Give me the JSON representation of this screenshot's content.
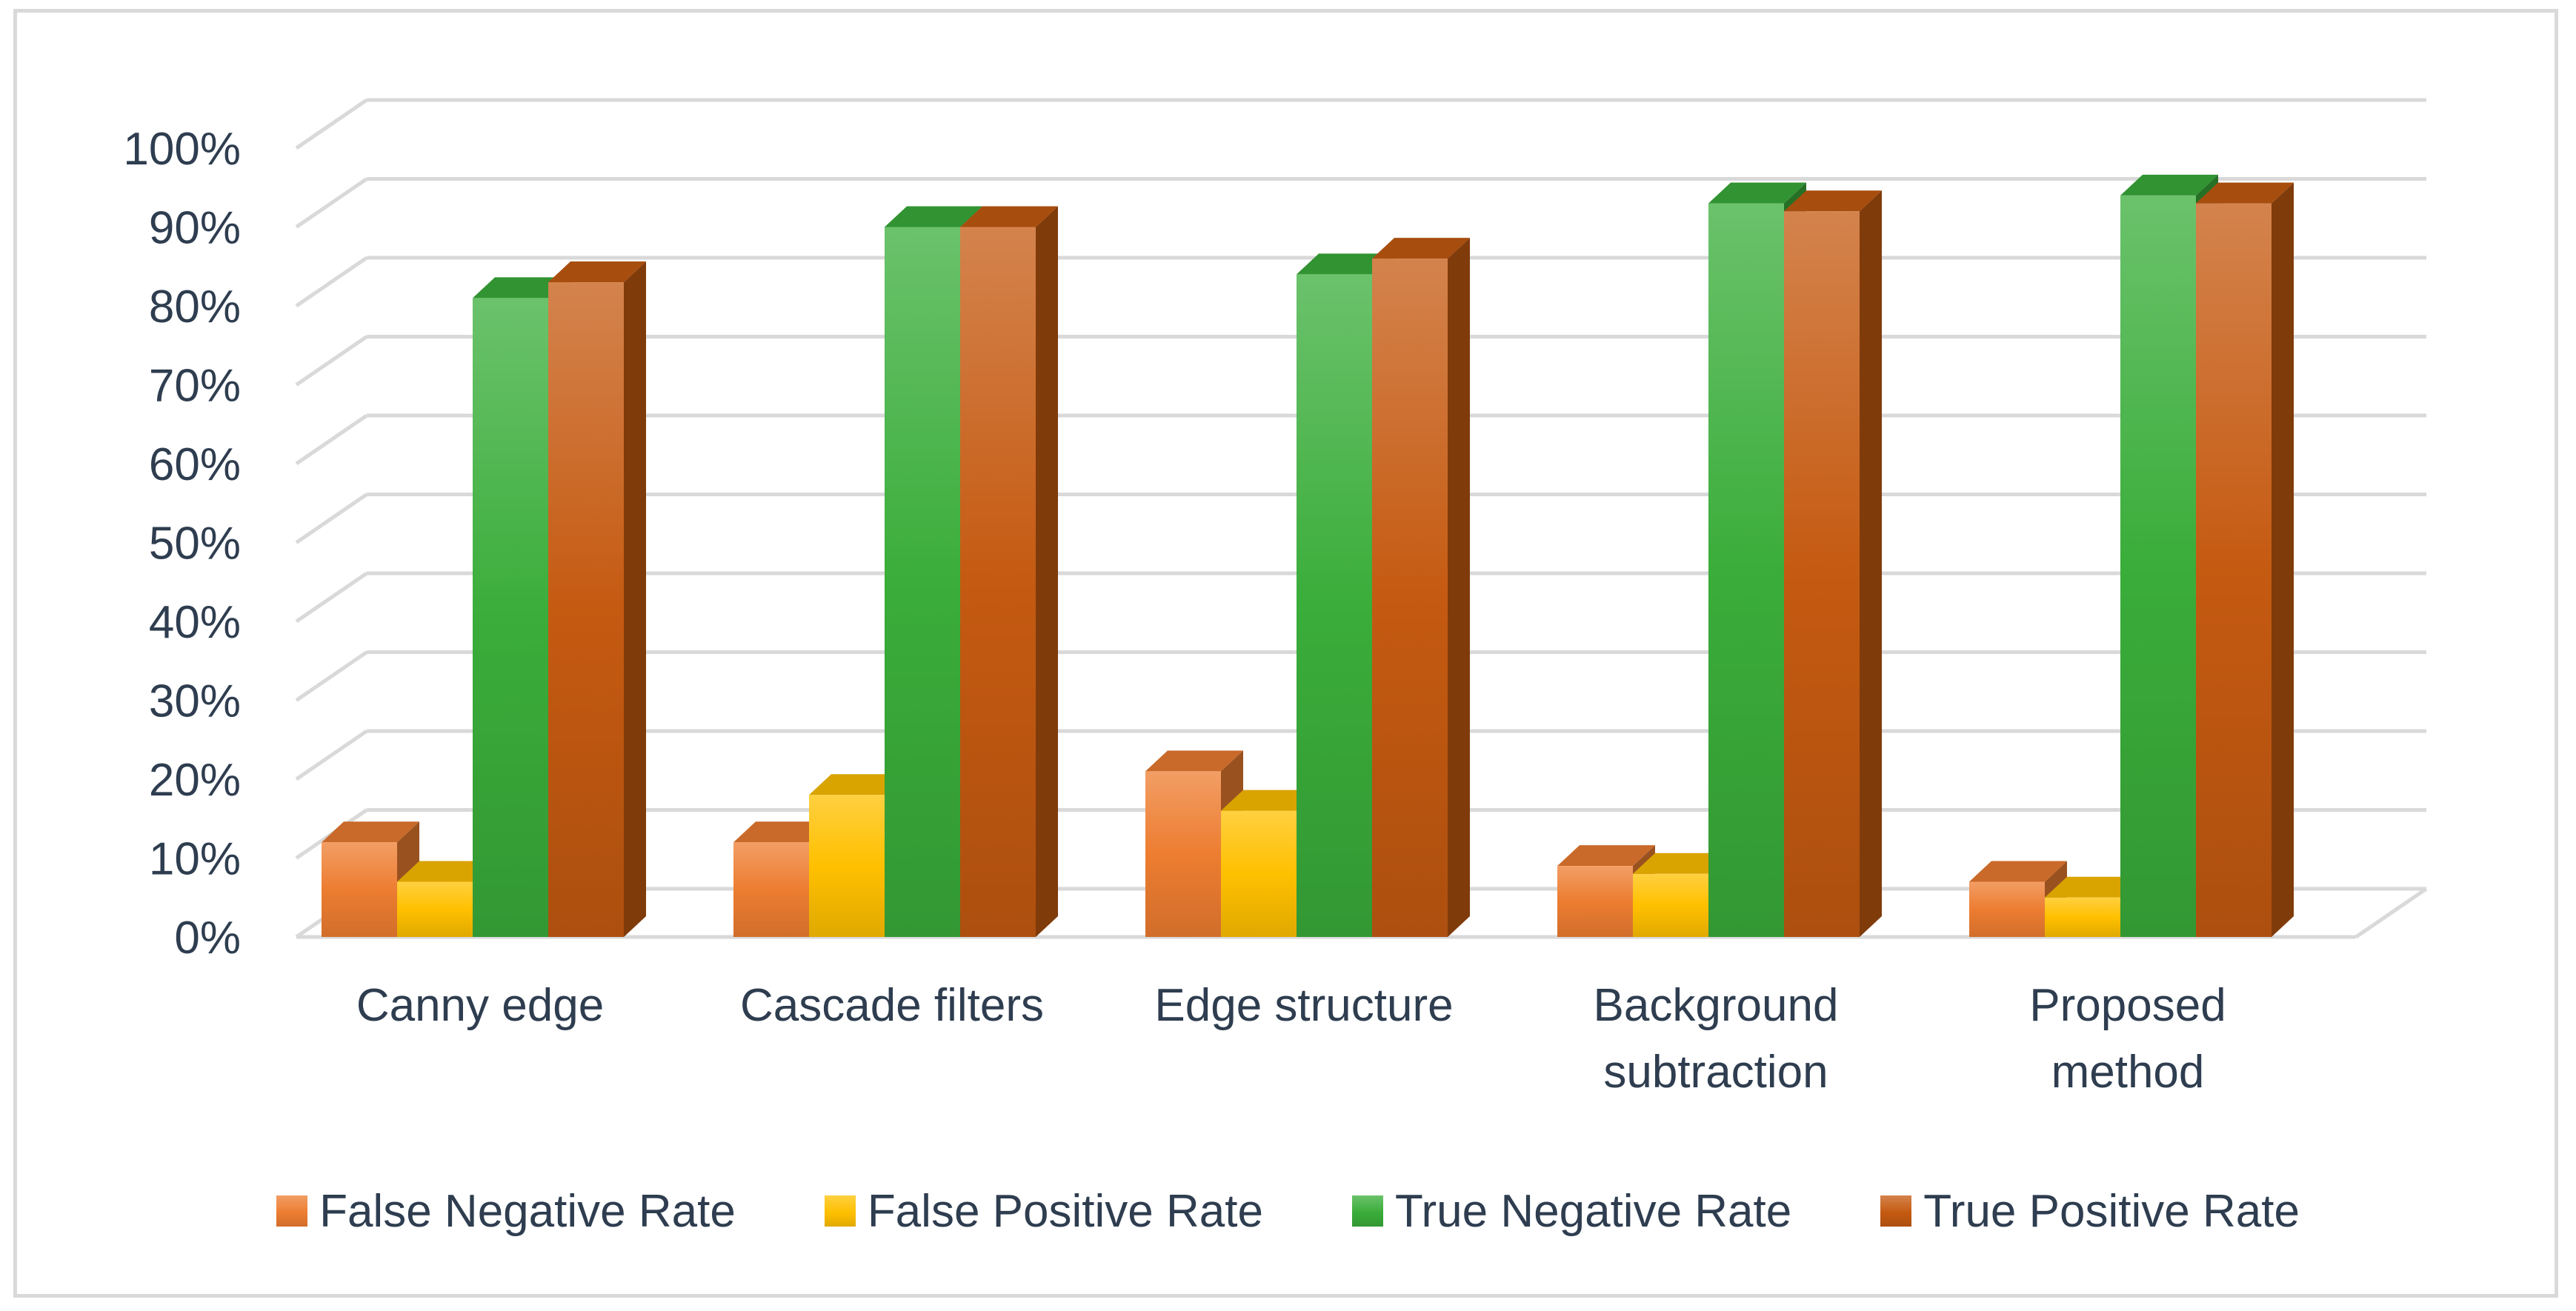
{
  "chart_data": {
    "type": "bar",
    "subtype": "3d-clustered-column",
    "title": "",
    "xlabel": "",
    "ylabel": "",
    "ylim": [
      0,
      100
    ],
    "y_ticks": [
      "0%",
      "10%",
      "20%",
      "30%",
      "40%",
      "50%",
      "60%",
      "70%",
      "80%",
      "90%",
      "100%"
    ],
    "categories": [
      [
        "Canny edge"
      ],
      [
        "Cascade filters"
      ],
      [
        "Edge structure"
      ],
      [
        "Background",
        "subtraction"
      ],
      [
        "Proposed",
        "method"
      ]
    ],
    "series": [
      {
        "name": "False Negative Rate",
        "color": "#ed7d31",
        "values": [
          12,
          12,
          21,
          9,
          7
        ]
      },
      {
        "name": "False Positive Rate",
        "color": "#ffc000",
        "values": [
          7,
          18,
          16,
          8,
          5
        ]
      },
      {
        "name": "True Negative Rate",
        "color": "#3aad3a",
        "values": [
          81,
          90,
          84,
          93,
          94
        ]
      },
      {
        "name": "True Positive Rate",
        "color": "#c55a11",
        "values": [
          83,
          90,
          86,
          92,
          93
        ]
      }
    ],
    "legend_position": "bottom",
    "grid": true
  },
  "legend": {
    "items": [
      {
        "label": "False Negative Rate",
        "color": "#ed7d31"
      },
      {
        "label": "False Positive Rate",
        "color": "#ffc000"
      },
      {
        "label": "True Negative Rate",
        "color": "#3aad3a"
      },
      {
        "label": "True Positive Rate",
        "color": "#c55a11"
      }
    ]
  }
}
